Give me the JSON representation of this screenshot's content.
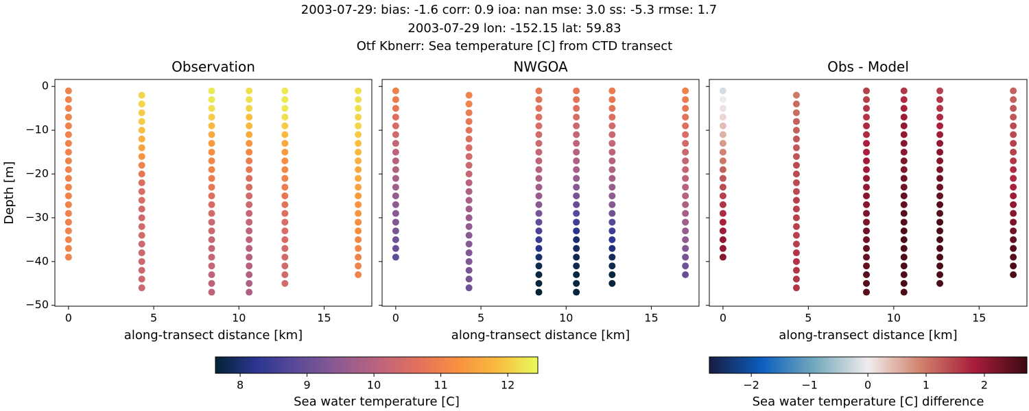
{
  "suptitle": [
    "2003-07-29: bias: -1.6  corr: 0.9  ioa: nan  mse: 3.0  ss: -5.3  rmse: 1.7",
    "2003-07-29 lon: -152.15 lat: 59.83",
    "Otf Kbnerr: Sea temperature [C] from CTD transect"
  ],
  "profiles": [
    {
      "distance": 0,
      "depth": [
        -1,
        -3,
        -5,
        -7,
        -9,
        -11,
        -13,
        -15,
        -17,
        -19,
        -21,
        -23,
        -25,
        -27,
        -29,
        -31,
        -33,
        -35,
        -37,
        -39
      ]
    },
    {
      "distance": 4.3,
      "depth": [
        -2,
        -4,
        -6,
        -8,
        -10,
        -12,
        -14,
        -16,
        -18,
        -20,
        -22,
        -24,
        -26,
        -28,
        -30,
        -32,
        -34,
        -36,
        -38,
        -40,
        -42,
        -44,
        -46
      ]
    },
    {
      "distance": 8.4,
      "depth": [
        -1,
        -3,
        -5,
        -7,
        -9,
        -11,
        -13,
        -15,
        -17,
        -19,
        -21,
        -23,
        -25,
        -27,
        -29,
        -31,
        -33,
        -35,
        -37,
        -39,
        -41,
        -43,
        -45,
        -47
      ]
    },
    {
      "distance": 10.6,
      "depth": [
        -1,
        -3,
        -5,
        -7,
        -9,
        -11,
        -13,
        -15,
        -17,
        -19,
        -21,
        -23,
        -25,
        -27,
        -29,
        -31,
        -33,
        -35,
        -37,
        -39,
        -41,
        -43,
        -45,
        -47
      ]
    },
    {
      "distance": 12.7,
      "depth": [
        -1,
        -3,
        -5,
        -7,
        -9,
        -11,
        -13,
        -15,
        -17,
        -19,
        -21,
        -23,
        -25,
        -27,
        -29,
        -31,
        -33,
        -35,
        -37,
        -39,
        -41,
        -43,
        -45
      ]
    },
    {
      "distance": 17,
      "depth": [
        -1,
        -3,
        -5,
        -7,
        -9,
        -11,
        -13,
        -15,
        -17,
        -19,
        -21,
        -23,
        -25,
        -27,
        -29,
        -31,
        -33,
        -35,
        -37,
        -39,
        -41,
        -43
      ]
    }
  ],
  "chart_data": [
    {
      "type": "scatter",
      "title": "Observation",
      "xlabel": "along-transect distance [km]",
      "ylabel": "Depth [m]",
      "xlim": [
        -0.8,
        17.8
      ],
      "ylim": [
        -50.2,
        1.6
      ],
      "xticks": [
        0,
        5,
        10,
        15
      ],
      "yticks": [
        0,
        {
          "value": -10,
          "label": "−10"
        },
        {
          "value": -20,
          "label": "−20"
        },
        {
          "value": -30,
          "label": "−30"
        },
        {
          "value": -40,
          "label": "−40"
        },
        {
          "value": -50,
          "label": "−50"
        }
      ],
      "colorbar": {
        "label": "Sea water temperature [C]",
        "lim": [
          7.63,
          12.45
        ],
        "ticks": [
          8,
          9,
          10,
          11,
          12
        ],
        "colormap": [
          "#042333",
          "#2a3590",
          "#5b4a98",
          "#8b5a92",
          "#b9637e",
          "#e0705e",
          "#f7903f",
          "#f9bb40",
          "#e8fa5b"
        ]
      },
      "values": [
        [
          11.0,
          11.0,
          11.0,
          11.0,
          11.0,
          11.0,
          11.0,
          11.0,
          11.0,
          11.0,
          11.0,
          11.0,
          11.0,
          11.0,
          11.0,
          11.0,
          11.0,
          11.0,
          11.0,
          11.0
        ],
        [
          12.1,
          12.1,
          12.0,
          12.0,
          11.9,
          11.7,
          11.5,
          11.3,
          11.0,
          10.8,
          10.6,
          10.5,
          10.5,
          10.4,
          10.4,
          10.4,
          10.4,
          10.3,
          10.3,
          10.3,
          10.3,
          10.3,
          10.3
        ],
        [
          12.3,
          12.3,
          12.2,
          12.0,
          11.8,
          11.6,
          11.4,
          11.2,
          11.1,
          11.0,
          10.9,
          10.8,
          10.6,
          10.5,
          10.4,
          10.3,
          10.3,
          10.2,
          10.2,
          10.2,
          10.2,
          10.1,
          10.1,
          10.1
        ],
        [
          12.2,
          12.2,
          12.1,
          11.9,
          11.8,
          11.6,
          11.3,
          11.1,
          10.9,
          10.8,
          10.6,
          10.5,
          10.4,
          10.3,
          10.2,
          10.2,
          10.1,
          10.1,
          10.0,
          10.0,
          10.0,
          9.9,
          9.9,
          9.9
        ],
        [
          12.3,
          12.3,
          12.3,
          12.2,
          12.0,
          11.8,
          11.6,
          11.4,
          11.2,
          11.1,
          11.0,
          10.9,
          10.8,
          10.7,
          10.6,
          10.5,
          10.5,
          10.5,
          10.4,
          10.4,
          10.4,
          10.4,
          10.4
        ],
        [
          12.2,
          12.2,
          12.2,
          12.1,
          12.1,
          12.0,
          11.9,
          11.8,
          11.7,
          11.6,
          11.6,
          11.5,
          11.4,
          11.3,
          11.3,
          11.2,
          11.2,
          11.1,
          11.1,
          11.0,
          11.0,
          11.0
        ]
      ]
    },
    {
      "type": "scatter",
      "title": "NWGOA",
      "xlabel": "along-transect distance [km]",
      "xlim": [
        -0.8,
        17.8
      ],
      "ylim": [
        -50.2,
        1.6
      ],
      "xticks": [
        0,
        5,
        10,
        15
      ],
      "values": [
        [
          11.0,
          10.9,
          10.8,
          10.6,
          10.5,
          10.4,
          10.2,
          10.1,
          10.0,
          9.9,
          9.8,
          9.7,
          9.6,
          9.5,
          9.4,
          9.3,
          9.2,
          9.1,
          9.0,
          8.9
        ],
        [
          11.0,
          11.0,
          10.9,
          10.8,
          10.7,
          10.6,
          10.5,
          10.4,
          10.3,
          10.2,
          10.0,
          9.9,
          9.8,
          9.7,
          9.6,
          9.5,
          9.4,
          9.4,
          9.3,
          9.3,
          9.2,
          9.2,
          9.1
        ],
        [
          10.8,
          10.7,
          10.7,
          10.6,
          10.5,
          10.4,
          10.3,
          10.2,
          10.1,
          10.0,
          9.9,
          9.7,
          9.6,
          9.4,
          9.2,
          8.9,
          8.6,
          8.4,
          8.2,
          8.0,
          7.8,
          7.7,
          7.7,
          7.6
        ],
        [
          10.8,
          10.7,
          10.6,
          10.5,
          10.3,
          10.2,
          10.1,
          10.0,
          9.9,
          9.8,
          9.6,
          9.4,
          9.2,
          9.0,
          8.8,
          8.5,
          8.2,
          8.0,
          7.9,
          7.8,
          7.8,
          7.7,
          7.7,
          7.7
        ],
        [
          10.9,
          10.8,
          10.7,
          10.6,
          10.4,
          10.3,
          10.2,
          10.1,
          10.0,
          9.9,
          9.8,
          9.6,
          9.5,
          9.4,
          9.1,
          8.8,
          8.5,
          8.3,
          8.1,
          7.9,
          7.8,
          7.7,
          7.7
        ],
        [
          11.0,
          10.9,
          10.8,
          10.7,
          10.6,
          10.5,
          10.4,
          10.3,
          10.2,
          10.2,
          10.1,
          10.0,
          10.0,
          9.9,
          9.8,
          9.7,
          9.6,
          9.5,
          9.3,
          9.2,
          9.1,
          9.0
        ]
      ]
    },
    {
      "type": "scatter",
      "title": "Obs - Model",
      "xlabel": "along-transect distance [km]",
      "xlim": [
        -0.8,
        17.8
      ],
      "ylim": [
        -50.2,
        1.6
      ],
      "xticks": [
        0,
        5,
        10,
        15
      ],
      "colorbar": {
        "label": "Sea water temperature [C] difference",
        "lim": [
          -2.72,
          2.73
        ],
        "ticks": [
          {
            "value": -2,
            "label": "−2"
          },
          {
            "value": -1,
            "label": "−1"
          },
          0,
          1,
          2
        ],
        "colormap": [
          "#181c43",
          "#0c5ebe",
          "#75aabe",
          "#f1ecec",
          "#d0816c",
          "#a81d3b",
          "#3c0912"
        ]
      },
      "values": [
        [
          -0.2,
          0.0,
          0.1,
          0.2,
          0.4,
          0.5,
          0.7,
          0.9,
          1.0,
          1.2,
          1.3,
          1.4,
          1.5,
          1.6,
          1.7,
          1.8,
          1.9,
          2.0,
          2.0,
          2.1
        ],
        [
          1.0,
          1.1,
          1.1,
          1.2,
          1.2,
          1.3,
          1.3,
          1.3,
          1.4,
          1.4,
          1.4,
          1.4,
          1.5,
          1.5,
          1.5,
          1.5,
          1.5,
          1.5,
          1.6,
          1.6,
          1.6,
          1.6,
          1.6
        ],
        [
          1.5,
          1.5,
          1.6,
          1.6,
          1.7,
          1.7,
          1.8,
          1.8,
          1.9,
          1.9,
          2.0,
          2.0,
          2.1,
          2.1,
          2.2,
          2.2,
          2.3,
          2.3,
          2.4,
          2.4,
          2.4,
          2.5,
          2.5,
          2.5
        ],
        [
          1.6,
          1.7,
          1.8,
          1.9,
          2.0,
          2.0,
          2.1,
          2.1,
          2.2,
          2.2,
          2.3,
          2.3,
          2.4,
          2.4,
          2.5,
          2.5,
          2.6,
          2.6,
          2.6,
          2.6,
          2.6,
          2.6,
          2.6,
          2.6
        ],
        [
          1.5,
          1.6,
          1.6,
          1.7,
          1.8,
          1.9,
          2.0,
          2.1,
          2.1,
          2.2,
          2.3,
          2.3,
          2.4,
          2.5,
          2.5,
          2.6,
          2.6,
          2.6,
          2.6,
          2.6,
          2.6,
          2.6,
          2.6
        ],
        [
          1.2,
          1.2,
          1.3,
          1.3,
          1.4,
          1.4,
          1.5,
          1.5,
          1.6,
          1.7,
          1.7,
          1.8,
          1.9,
          2.0,
          2.1,
          2.2,
          2.3,
          2.4,
          2.5,
          2.5,
          2.6,
          2.6
        ]
      ]
    }
  ]
}
